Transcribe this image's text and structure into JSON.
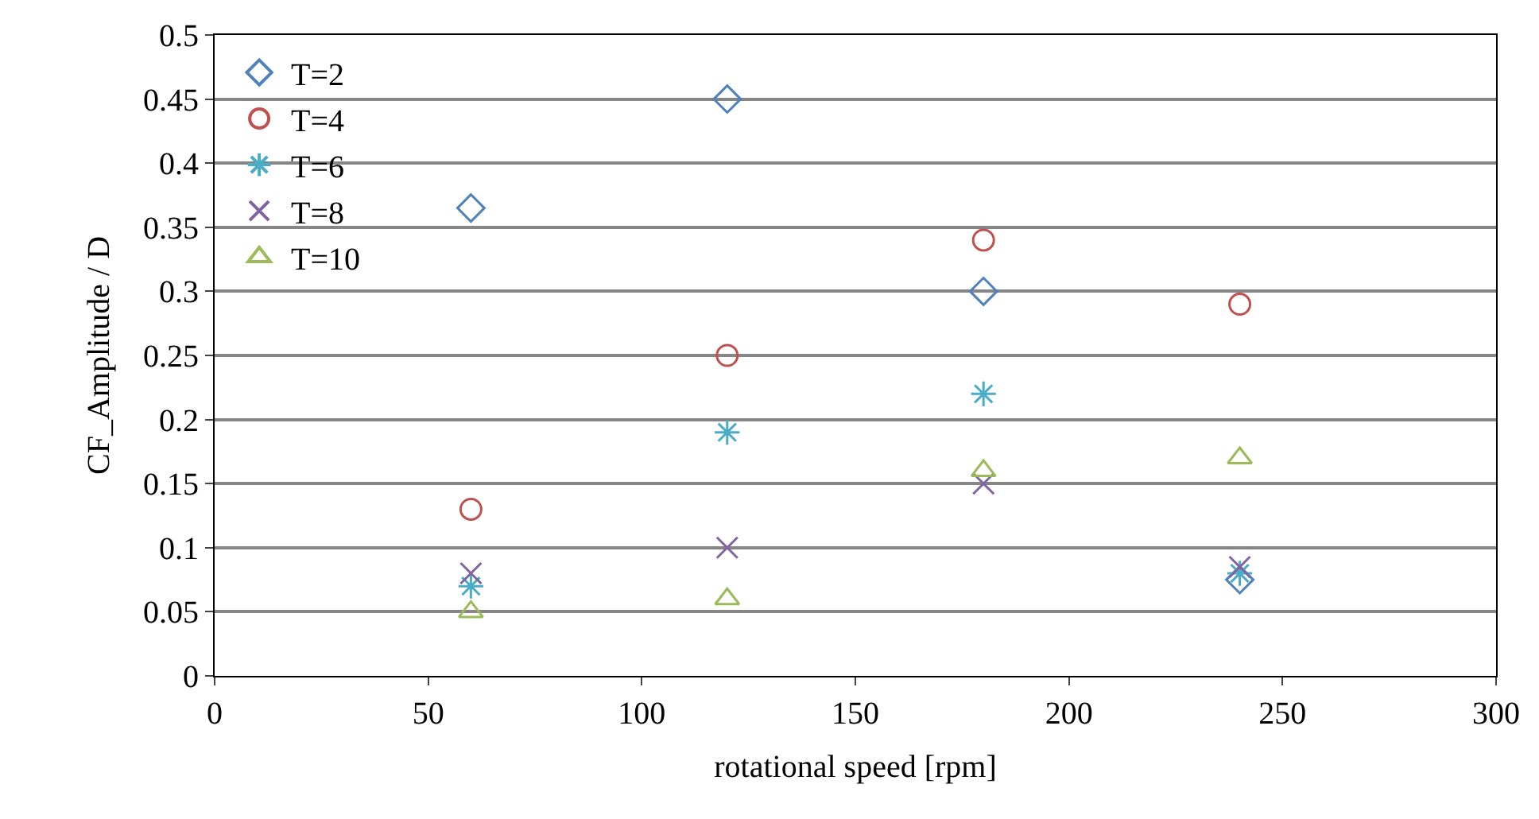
{
  "chart_data": {
    "type": "scatter",
    "xlabel": "rotational speed [rpm]",
    "ylabel": "CF_Amplitude / D",
    "xlim": [
      0,
      300
    ],
    "xticks": [
      0,
      50,
      100,
      150,
      200,
      250,
      300
    ],
    "ylim": [
      0,
      0.5
    ],
    "yticks": [
      0,
      0.05,
      0.1,
      0.15,
      0.2,
      0.25,
      0.3,
      0.35,
      0.4,
      0.45,
      0.5
    ],
    "grid": "y",
    "legend": "top left",
    "x": [
      60,
      120,
      180,
      240
    ],
    "series": [
      {
        "name": "T=2",
        "color": "#4f81bd",
        "marker": "diamond",
        "values": [
          0.365,
          0.45,
          0.3,
          0.075
        ]
      },
      {
        "name": "T=4",
        "color": "#c0504d",
        "marker": "circle",
        "values": [
          0.13,
          0.25,
          0.34,
          0.29
        ]
      },
      {
        "name": "T=6",
        "color": "#4bacc6",
        "marker": "cross",
        "values": [
          0.07,
          0.19,
          0.22,
          0.08
        ]
      },
      {
        "name": "T=8",
        "color": "#8064a2",
        "marker": "cross",
        "values": [
          0.08,
          0.1,
          0.15,
          0.085
        ]
      },
      {
        "name": "T=10",
        "color": "#9bbb59",
        "marker": "triangle",
        "values": [
          0.05,
          0.06,
          0.16,
          0.17
        ]
      }
    ]
  }
}
